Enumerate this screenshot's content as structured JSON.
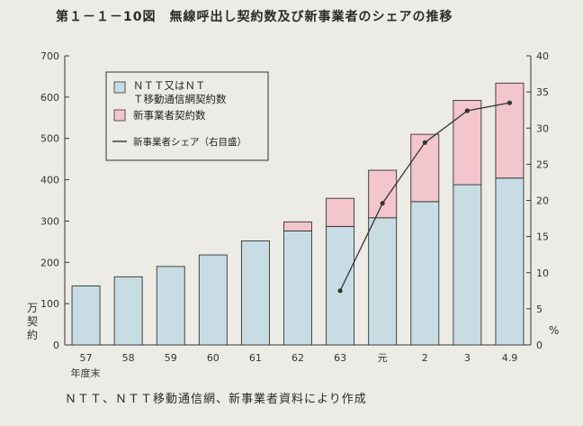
{
  "title": "第１－１－10図　無線呼出し契約数及び新事業者のシェアの推移",
  "source_note": "ＮＴＴ、ＮＴＴ移動通信網、新事業者資料により作成",
  "colors": {
    "ntt_fill": "#c7dde3",
    "new_fill": "#f3c5cd",
    "bar_stroke": "#333333",
    "line": "#333333",
    "background": "#ecebe6"
  },
  "chart_data": {
    "type": "bar",
    "title": "第１－１－10図　無線呼出し契約数及び新事業者のシェアの推移",
    "categories": [
      "57",
      "58",
      "59",
      "60",
      "61",
      "62",
      "63",
      "元",
      "2",
      "3",
      "4.9"
    ],
    "x_unit_label": "年度末",
    "ylabel": "万契約",
    "ylim": [
      0,
      700
    ],
    "y_ticks": [
      0,
      100,
      200,
      300,
      400,
      500,
      600,
      700
    ],
    "y2label": "%",
    "y2lim": [
      0,
      40
    ],
    "y2_ticks": [
      0,
      5,
      10,
      15,
      20,
      25,
      30,
      35,
      40
    ],
    "stacked": true,
    "series": [
      {
        "name": "ＮＴＴ又はＮＴＴ移動通信網契約数",
        "kind": "bar",
        "values": [
          143,
          165,
          190,
          218,
          252,
          276,
          287,
          308,
          347,
          388,
          404
        ]
      },
      {
        "name": "新事業者契約数",
        "kind": "bar",
        "values": [
          0,
          0,
          0,
          0,
          0,
          22,
          68,
          115,
          163,
          204,
          230
        ]
      },
      {
        "name": "新事業者シェア（右目盛）",
        "kind": "line",
        "axis": "right",
        "values": [
          null,
          null,
          null,
          null,
          null,
          null,
          7.5,
          19.6,
          28.0,
          32.4,
          33.5
        ]
      }
    ],
    "grid": false,
    "legend_position": "top-left"
  }
}
